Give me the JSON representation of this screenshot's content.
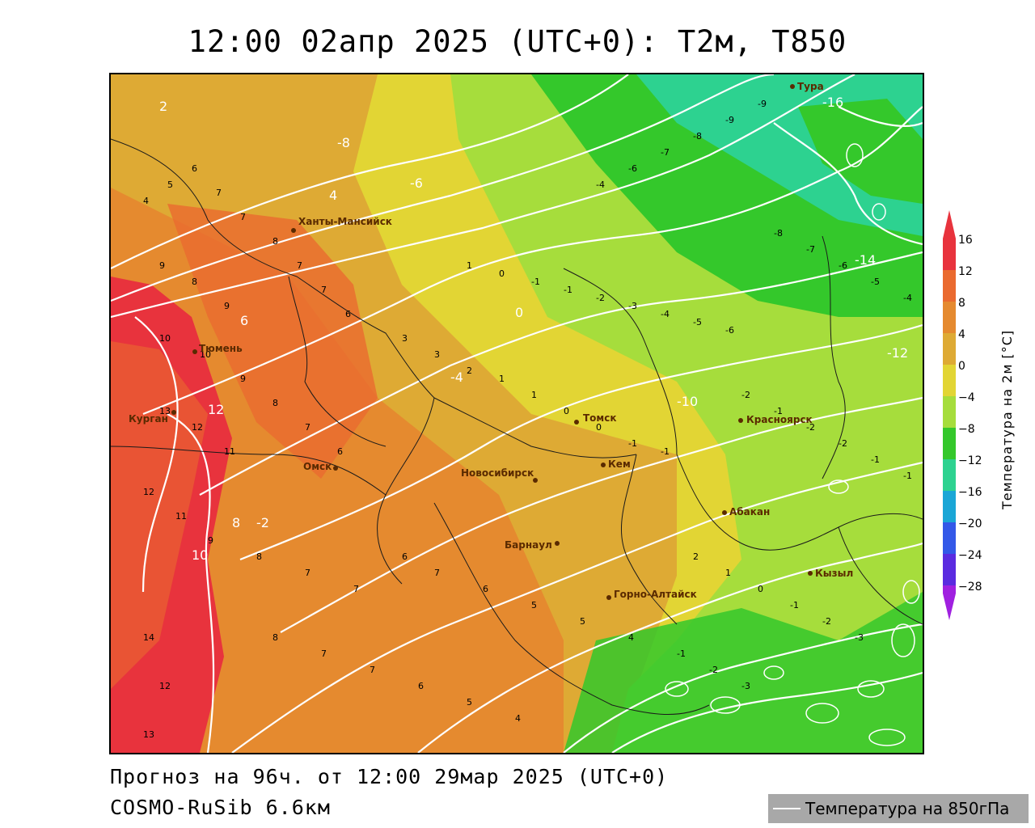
{
  "title": "12:00 02апр 2025 (UTC+0): T2м, T850",
  "footer": {
    "forecast": "Прогноз на 96ч. от 12:00 29мар 2025 (UTC+0)",
    "model": "COSMO-RuSib 6.6км"
  },
  "legend": {
    "line_label": "Температура на 850гПа"
  },
  "colorbar": {
    "title": "Температура на 2м [°C]",
    "ticks": [
      "16",
      "12",
      "8",
      "4",
      "0",
      "−4",
      "−8",
      "−12",
      "−16",
      "−20",
      "−24",
      "−28"
    ],
    "colors": {
      "t16": "#e8333d",
      "t12": "#ea6a2f",
      "t8": "#e58a2f",
      "t4": "#deaa34",
      "t0": "#e2d534",
      "tm4": "#a6dd3c",
      "tm8": "#34c82b",
      "tm12": "#2dd290",
      "tm16": "#1aa6d6",
      "tm20": "#3358e8",
      "tm24": "#5a2be0",
      "tm28": "#a020e0"
    }
  },
  "cities": [
    {
      "name": "Тура"
    },
    {
      "name": "Ханты-Мансийск"
    },
    {
      "name": "Тюмень"
    },
    {
      "name": "Курган"
    },
    {
      "name": "Омск"
    },
    {
      "name": "Новосибирск"
    },
    {
      "name": "Томск"
    },
    {
      "name": "Кем"
    },
    {
      "name": "Красноярск"
    },
    {
      "name": "Абакан"
    },
    {
      "name": "Барнаул"
    },
    {
      "name": "Горно-Алтайск"
    },
    {
      "name": "Кызыл"
    }
  ],
  "isotherm_labels": [
    "-16",
    "-14",
    "-12",
    "-10",
    "-8",
    "-6",
    "-4",
    "-2",
    "0",
    "2",
    "4",
    "6",
    "8",
    "10",
    "12"
  ]
}
